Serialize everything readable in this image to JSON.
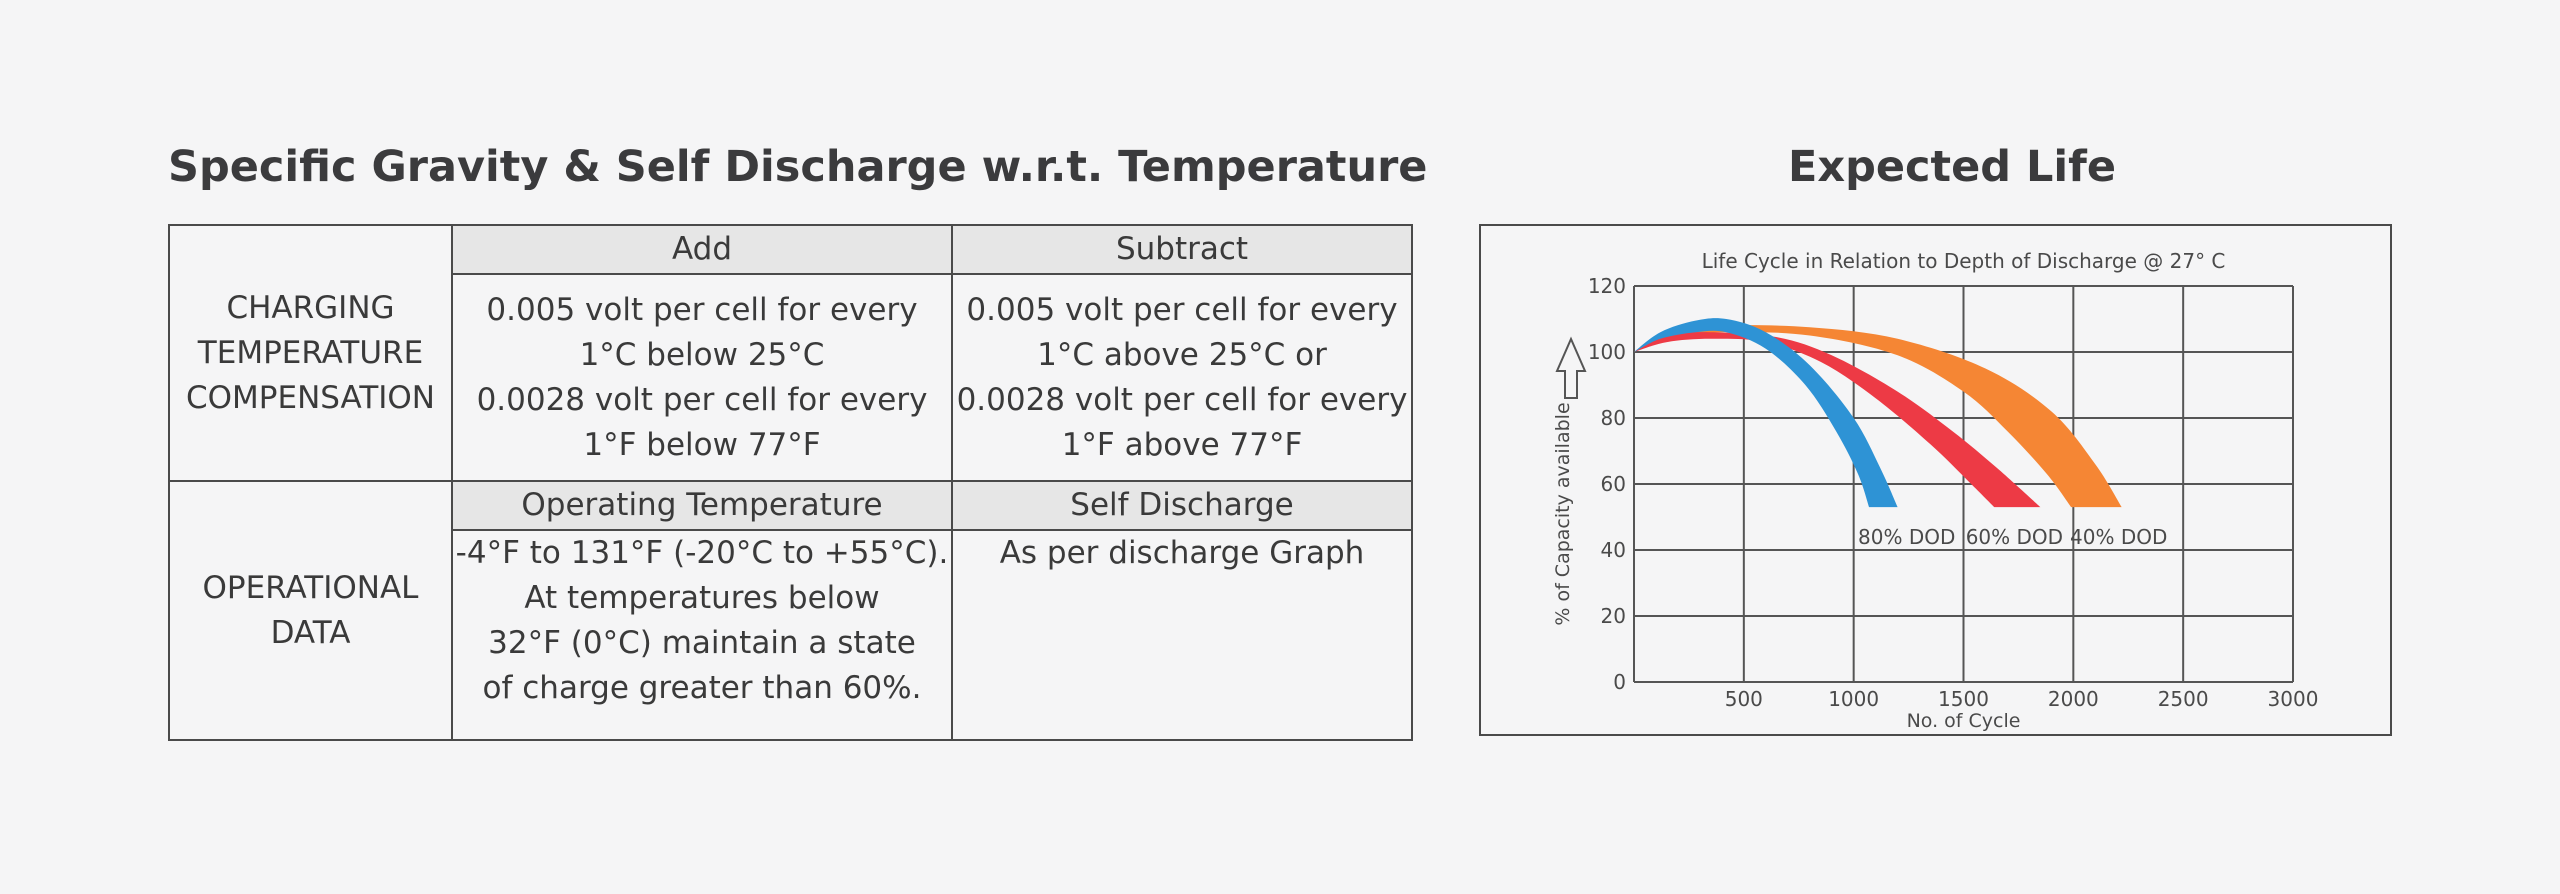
{
  "left_title": "Specific Gravity & Self Discharge w.r.t. Temperature",
  "right_title": "Expected Life",
  "table": {
    "charging_label": [
      "CHARGING",
      "TEMPERATURE",
      "COMPENSATION"
    ],
    "add_header": "Add",
    "subtract_header": "Subtract",
    "add_lines": [
      "0.005 volt per cell for every",
      "1°C below 25°C",
      "0.0028 volt per cell for every",
      "1°F below 77°F"
    ],
    "subtract_lines": [
      "0.005 volt per cell for every",
      "1°C above 25°C or",
      "0.0028 volt per cell for every",
      "1°F above 77°F"
    ],
    "operational_label": [
      "OPERATIONAL",
      "DATA"
    ],
    "operating_header": "Operating Temperature",
    "self_discharge_header": "Self Discharge",
    "operating_lines": [
      "-4°F to 131°F (-20°C to +55°C).",
      "At temperatures below",
      "32°F (0°C) maintain a state",
      "of charge greater than 60%."
    ],
    "self_discharge_text": "As per discharge Graph"
  },
  "chart_data": {
    "type": "area",
    "title": "Life Cycle in Relation to Depth of Discharge @ 27° C",
    "xlabel": "No. of Cycle",
    "ylabel": "% of Capacity available",
    "xlim": [
      0,
      3000
    ],
    "ylim": [
      0,
      120
    ],
    "x_ticks": [
      500,
      1000,
      1500,
      2000,
      2500,
      3000
    ],
    "y_ticks": [
      0,
      20,
      40,
      60,
      80,
      100,
      120
    ],
    "grid": true,
    "series": [
      {
        "name": "40% DOD",
        "color": "#f58634",
        "upper": {
          "x": [
            0,
            150,
            400,
            800,
            1200,
            1600,
            1900,
            2100,
            2220
          ],
          "y": [
            100,
            106,
            108,
            107.5,
            104,
            95,
            82,
            66,
            53
          ]
        },
        "lower": {
          "x": [
            0,
            150,
            400,
            800,
            1200,
            1500,
            1700,
            1880,
            1990
          ],
          "y": [
            100,
            104,
            106,
            105,
            99,
            88,
            76,
            63,
            53
          ]
        }
      },
      {
        "name": "60% DOD",
        "color": "#ed3a45",
        "upper": {
          "x": [
            0,
            150,
            350,
            650,
            900,
            1200,
            1450,
            1650,
            1850
          ],
          "y": [
            100,
            105,
            106,
            104.5,
            99,
            88,
            76,
            65,
            53
          ]
        },
        "lower": {
          "x": [
            0,
            150,
            350,
            600,
            850,
            1100,
            1350,
            1520,
            1640
          ],
          "y": [
            100,
            103,
            104,
            103,
            97,
            86,
            72,
            61,
            53
          ]
        }
      },
      {
        "name": "80% DOD",
        "color": "#2e93d5",
        "upper": {
          "x": [
            0,
            120,
            280,
            420,
            600,
            800,
            1000,
            1120,
            1200
          ],
          "y": [
            100,
            106,
            109.5,
            110,
            106,
            96,
            80,
            65,
            53
          ]
        },
        "lower": {
          "x": [
            0,
            120,
            280,
            420,
            600,
            780,
            920,
            1020,
            1070
          ],
          "y": [
            100,
            104,
            106,
            106,
            101,
            90,
            76,
            63,
            53
          ]
        }
      }
    ],
    "annotations": [
      {
        "text": "80% DOD",
        "x": 1020,
        "y": 44
      },
      {
        "text": "60% DOD",
        "x": 1510,
        "y": 44
      },
      {
        "text": "40% DOD",
        "x": 1985,
        "y": 44
      }
    ],
    "arrow": "up"
  }
}
